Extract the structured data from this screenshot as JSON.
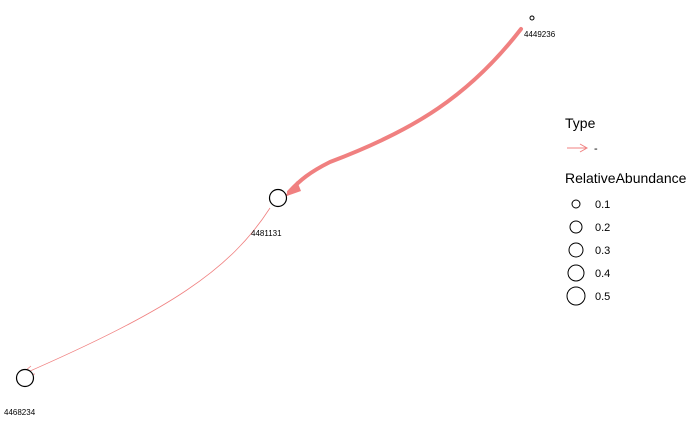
{
  "network": {
    "edge_color": "#F08080",
    "node_stroke": "#000000",
    "nodes": [
      {
        "id": "4449236",
        "relative_abundance": 0.03
      },
      {
        "id": "4481131",
        "relative_abundance": 0.3
      },
      {
        "id": "4468234",
        "relative_abundance": 0.3
      }
    ],
    "edges": [
      {
        "from": "4449236",
        "to": "4481131",
        "weight": "heavy"
      },
      {
        "from": "4481131",
        "to": "4468234",
        "weight": "light"
      }
    ]
  },
  "legend": {
    "type_title": "Type",
    "type_entry": "-",
    "abundance_title": "RelativeAbundance",
    "abundance_entries": [
      {
        "label": "0.1",
        "value": 0.1
      },
      {
        "label": "0.2",
        "value": 0.2
      },
      {
        "label": "0.3",
        "value": 0.3
      },
      {
        "label": "0.4",
        "value": 0.4
      },
      {
        "label": "0.5",
        "value": 0.5
      }
    ]
  }
}
